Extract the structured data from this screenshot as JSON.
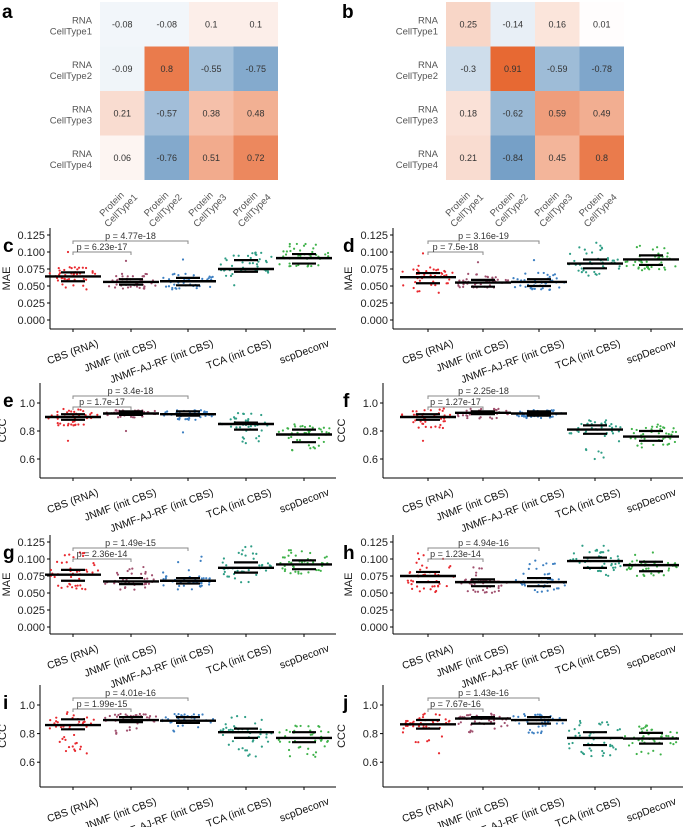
{
  "colors": {
    "CBS (RNA)": "#e8292f",
    "JNMF (init CBS)": "#a0506e",
    "JNMF-AJ-RF (init CBS)": "#3d7fc1",
    "TCA (init CBS)": "#2f9e86",
    "scpDeconv": "#3fb24a",
    "heat_pos": "#e6622a",
    "heat_neg": "#6f9bc4"
  },
  "chart_data": [
    {
      "panel": "a",
      "type": "heatmap",
      "rows": [
        [
          "RNA",
          "CellType1"
        ],
        [
          "RNA",
          "CellType2"
        ],
        [
          "RNA",
          "CellType3"
        ],
        [
          "RNA",
          "CellType4"
        ]
      ],
      "cols": [
        [
          "Protein",
          "CellType1"
        ],
        [
          "Protein",
          "CellType2"
        ],
        [
          "Protein",
          "CellType3"
        ],
        [
          "Protein",
          "CellType4"
        ]
      ],
      "values": [
        [
          -0.08,
          -0.08,
          0.1,
          0.1
        ],
        [
          -0.09,
          0.8,
          -0.55,
          -0.75
        ],
        [
          0.21,
          -0.57,
          0.38,
          0.48
        ],
        [
          0.06,
          -0.76,
          0.51,
          0.72
        ]
      ]
    },
    {
      "panel": "b",
      "type": "heatmap",
      "rows": [
        [
          "RNA",
          "CellType1"
        ],
        [
          "RNA",
          "CellType2"
        ],
        [
          "RNA",
          "CellType3"
        ],
        [
          "RNA",
          "CellType4"
        ]
      ],
      "cols": [
        [
          "Protein",
          "CellType1"
        ],
        [
          "Protein",
          "CellType2"
        ],
        [
          "Protein",
          "CellType3"
        ],
        [
          "Protein",
          "CellType4"
        ]
      ],
      "values": [
        [
          0.25,
          -0.14,
          0.16,
          0.01
        ],
        [
          -0.3,
          0.91,
          -0.59,
          -0.78
        ],
        [
          0.18,
          -0.62,
          0.59,
          0.49
        ],
        [
          0.21,
          -0.84,
          0.45,
          0.8
        ]
      ]
    },
    {
      "panel": "c",
      "type": "scatter",
      "ylabel": "MAE",
      "ylim": [
        0,
        0.125
      ],
      "yticks": [
        "0.000",
        "0.025",
        "0.050",
        "0.075",
        "0.100",
        "0.125"
      ],
      "categories": [
        "CBS (RNA)",
        "JNMF (init CBS)",
        "JNMF-AJ-RF (init CBS)",
        "TCA (init CBS)",
        "scpDeconv"
      ],
      "groups": [
        {
          "median": 0.064,
          "q1": 0.057,
          "q3": 0.07,
          "min": 0.045,
          "max": 0.08,
          "outliers": [
            0.1
          ]
        },
        {
          "median": 0.056,
          "q1": 0.052,
          "q3": 0.06,
          "min": 0.046,
          "max": 0.068,
          "outliers": [
            0.087
          ]
        },
        {
          "median": 0.057,
          "q1": 0.051,
          "q3": 0.062,
          "min": 0.045,
          "max": 0.068,
          "outliers": [
            0.089
          ]
        },
        {
          "median": 0.075,
          "q1": 0.071,
          "q3": 0.088,
          "min": 0.051,
          "max": 0.101,
          "outliers": []
        },
        {
          "median": 0.091,
          "q1": 0.083,
          "q3": 0.097,
          "min": 0.078,
          "max": 0.115,
          "outliers": []
        }
      ],
      "comparisons": [
        {
          "pair": [
            0,
            1
          ],
          "label": "p = 6.23e-17"
        },
        {
          "pair": [
            0,
            2
          ],
          "label": "p = 4.77e-18"
        }
      ]
    },
    {
      "panel": "d",
      "type": "scatter",
      "ylabel": "MAE",
      "ylim": [
        0,
        0.125
      ],
      "yticks": [
        "0.000",
        "0.025",
        "0.050",
        "0.075",
        "0.100",
        "0.125"
      ],
      "categories": [
        "CBS (RNA)",
        "JNMF (init CBS)",
        "JNMF-AJ-RF (init CBS)",
        "TCA (init CBS)",
        "scpDeconv"
      ],
      "groups": [
        {
          "median": 0.063,
          "q1": 0.054,
          "q3": 0.069,
          "min": 0.04,
          "max": 0.08,
          "outliers": [
            0.098
          ]
        },
        {
          "median": 0.055,
          "q1": 0.049,
          "q3": 0.059,
          "min": 0.047,
          "max": 0.068,
          "outliers": [
            0.085
          ]
        },
        {
          "median": 0.056,
          "q1": 0.05,
          "q3": 0.06,
          "min": 0.044,
          "max": 0.07,
          "outliers": [
            0.088
          ]
        },
        {
          "median": 0.083,
          "q1": 0.076,
          "q3": 0.089,
          "min": 0.065,
          "max": 0.114,
          "outliers": []
        },
        {
          "median": 0.089,
          "q1": 0.081,
          "q3": 0.095,
          "min": 0.073,
          "max": 0.111,
          "outliers": []
        }
      ],
      "comparisons": [
        {
          "pair": [
            0,
            1
          ],
          "label": "p = 7.5e-18"
        },
        {
          "pair": [
            0,
            2
          ],
          "label": "p = 3.16e-19"
        }
      ]
    },
    {
      "panel": "e",
      "type": "scatter",
      "ylabel": "CCC",
      "ylim": [
        0.55,
        1.12
      ],
      "yticks": [
        "0.6",
        "0.8",
        "1.0"
      ],
      "categories": [
        "CBS (RNA)",
        "JNMF (init CBS)",
        "JNMF-AJ-RF (init CBS)",
        "TCA (init CBS)",
        "scpDeconv"
      ],
      "groups": [
        {
          "median": 0.9,
          "q1": 0.88,
          "q3": 0.92,
          "min": 0.84,
          "max": 0.96,
          "outliers": [
            0.73
          ]
        },
        {
          "median": 0.925,
          "q1": 0.915,
          "q3": 0.94,
          "min": 0.89,
          "max": 0.95,
          "outliers": [
            0.8
          ]
        },
        {
          "median": 0.92,
          "q1": 0.91,
          "q3": 0.94,
          "min": 0.88,
          "max": 0.95,
          "outliers": [
            0.79
          ]
        },
        {
          "median": 0.85,
          "q1": 0.81,
          "q3": 0.86,
          "min": 0.7,
          "max": 0.93,
          "outliers": []
        },
        {
          "median": 0.775,
          "q1": 0.72,
          "q3": 0.81,
          "min": 0.66,
          "max": 0.85,
          "outliers": []
        }
      ],
      "comparisons": [
        {
          "pair": [
            0,
            1
          ],
          "label": "p = 1.7e-17"
        },
        {
          "pair": [
            0,
            2
          ],
          "label": "p = 3.4e-18"
        }
      ]
    },
    {
      "panel": "f",
      "type": "scatter",
      "ylabel": "CCC",
      "ylim": [
        0.55,
        1.12
      ],
      "yticks": [
        "0.6",
        "0.8",
        "1.0"
      ],
      "categories": [
        "CBS (RNA)",
        "JNMF (init CBS)",
        "JNMF-AJ-RF (init CBS)",
        "TCA (init CBS)",
        "scpDeconv"
      ],
      "groups": [
        {
          "median": 0.9,
          "q1": 0.88,
          "q3": 0.92,
          "min": 0.82,
          "max": 0.96,
          "outliers": [
            0.73
          ]
        },
        {
          "median": 0.93,
          "q1": 0.92,
          "q3": 0.94,
          "min": 0.88,
          "max": 0.96,
          "outliers": []
        },
        {
          "median": 0.925,
          "q1": 0.91,
          "q3": 0.94,
          "min": 0.89,
          "max": 0.95,
          "outliers": []
        },
        {
          "median": 0.81,
          "q1": 0.78,
          "q3": 0.84,
          "min": 0.6,
          "max": 0.88,
          "outliers": []
        },
        {
          "median": 0.76,
          "q1": 0.73,
          "q3": 0.8,
          "min": 0.66,
          "max": 0.85,
          "outliers": []
        }
      ],
      "comparisons": [
        {
          "pair": [
            0,
            1
          ],
          "label": "p = 1.27e-17"
        },
        {
          "pair": [
            0,
            2
          ],
          "label": "p = 2.25e-18"
        }
      ]
    },
    {
      "panel": "g",
      "type": "scatter",
      "ylabel": "MAE",
      "ylim": [
        0,
        0.125
      ],
      "yticks": [
        "0.000",
        "0.025",
        "0.050",
        "0.075",
        "0.100",
        "0.125"
      ],
      "categories": [
        "CBS (RNA)",
        "JNMF (init CBS)",
        "JNMF-AJ-RF (init CBS)",
        "TCA (init CBS)",
        "scpDeconv"
      ],
      "groups": [
        {
          "median": 0.077,
          "q1": 0.068,
          "q3": 0.084,
          "min": 0.055,
          "max": 0.11,
          "outliers": []
        },
        {
          "median": 0.067,
          "q1": 0.063,
          "q3": 0.072,
          "min": 0.055,
          "max": 0.09,
          "outliers": []
        },
        {
          "median": 0.068,
          "q1": 0.064,
          "q3": 0.072,
          "min": 0.055,
          "max": 0.105,
          "outliers": []
        },
        {
          "median": 0.087,
          "q1": 0.08,
          "q3": 0.095,
          "min": 0.065,
          "max": 0.12,
          "outliers": []
        },
        {
          "median": 0.092,
          "q1": 0.085,
          "q3": 0.098,
          "min": 0.078,
          "max": 0.115,
          "outliers": []
        }
      ],
      "comparisons": [
        {
          "pair": [
            0,
            1
          ],
          "label": "p = 2.36e-14"
        },
        {
          "pair": [
            0,
            2
          ],
          "label": "p = 1.49e-15"
        }
      ]
    },
    {
      "panel": "h",
      "type": "scatter",
      "ylabel": "MAE",
      "ylim": [
        0,
        0.125
      ],
      "yticks": [
        "0.000",
        "0.025",
        "0.050",
        "0.075",
        "0.100",
        "0.125"
      ],
      "categories": [
        "CBS (RNA)",
        "JNMF (init CBS)",
        "JNMF-AJ-RF (init CBS)",
        "TCA (init CBS)",
        "scpDeconv"
      ],
      "groups": [
        {
          "median": 0.075,
          "q1": 0.066,
          "q3": 0.081,
          "min": 0.05,
          "max": 0.11,
          "outliers": []
        },
        {
          "median": 0.066,
          "q1": 0.06,
          "q3": 0.07,
          "min": 0.05,
          "max": 0.088,
          "outliers": []
        },
        {
          "median": 0.066,
          "q1": 0.06,
          "q3": 0.072,
          "min": 0.05,
          "max": 0.102,
          "outliers": []
        },
        {
          "median": 0.097,
          "q1": 0.087,
          "q3": 0.102,
          "min": 0.075,
          "max": 0.12,
          "outliers": []
        },
        {
          "median": 0.091,
          "q1": 0.082,
          "q3": 0.096,
          "min": 0.075,
          "max": 0.11,
          "outliers": []
        }
      ],
      "comparisons": [
        {
          "pair": [
            0,
            1
          ],
          "label": "p = 1.23e-14"
        },
        {
          "pair": [
            0,
            2
          ],
          "label": "p = 4.94e-16"
        }
      ]
    },
    {
      "panel": "i",
      "type": "scatter",
      "ylabel": "CCC",
      "ylim": [
        0.55,
        1.12
      ],
      "yticks": [
        "0.6",
        "0.8",
        "1.0"
      ],
      "categories": [
        "CBS (RNA)",
        "JNMF (init CBS)",
        "JNMF-AJ-RF (init CBS)",
        "TCA (init CBS)",
        "scpDeconv"
      ],
      "groups": [
        {
          "median": 0.86,
          "q1": 0.83,
          "q3": 0.9,
          "min": 0.65,
          "max": 0.95,
          "outliers": []
        },
        {
          "median": 0.895,
          "q1": 0.88,
          "q3": 0.915,
          "min": 0.79,
          "max": 0.94,
          "outliers": []
        },
        {
          "median": 0.89,
          "q1": 0.875,
          "q3": 0.915,
          "min": 0.78,
          "max": 0.94,
          "outliers": []
        },
        {
          "median": 0.81,
          "q1": 0.77,
          "q3": 0.835,
          "min": 0.63,
          "max": 0.93,
          "outliers": []
        },
        {
          "median": 0.77,
          "q1": 0.74,
          "q3": 0.81,
          "min": 0.63,
          "max": 0.86,
          "outliers": []
        }
      ],
      "comparisons": [
        {
          "pair": [
            0,
            1
          ],
          "label": "p = 1.99e-15"
        },
        {
          "pair": [
            0,
            2
          ],
          "label": "p = 4.01e-16"
        }
      ]
    },
    {
      "panel": "j",
      "type": "scatter",
      "ylabel": "CCC",
      "ylim": [
        0.55,
        1.12
      ],
      "yticks": [
        "0.6",
        "0.8",
        "1.0"
      ],
      "categories": [
        "CBS (RNA)",
        "JNMF (init CBS)",
        "JNMF-AJ-RF (init CBS)",
        "TCA (init CBS)",
        "scpDeconv"
      ],
      "groups": [
        {
          "median": 0.865,
          "q1": 0.835,
          "q3": 0.895,
          "min": 0.66,
          "max": 0.95,
          "outliers": []
        },
        {
          "median": 0.905,
          "q1": 0.87,
          "q3": 0.915,
          "min": 0.79,
          "max": 0.94,
          "outliers": []
        },
        {
          "median": 0.895,
          "q1": 0.87,
          "q3": 0.915,
          "min": 0.8,
          "max": 0.94,
          "outliers": []
        },
        {
          "median": 0.77,
          "q1": 0.72,
          "q3": 0.81,
          "min": 0.62,
          "max": 0.9,
          "outliers": []
        },
        {
          "median": 0.765,
          "q1": 0.73,
          "q3": 0.805,
          "min": 0.65,
          "max": 0.86,
          "outliers": []
        }
      ],
      "comparisons": [
        {
          "pair": [
            0,
            1
          ],
          "label": "p = 7.67e-16"
        },
        {
          "pair": [
            0,
            2
          ],
          "label": "p = 1.43e-16"
        }
      ]
    }
  ]
}
